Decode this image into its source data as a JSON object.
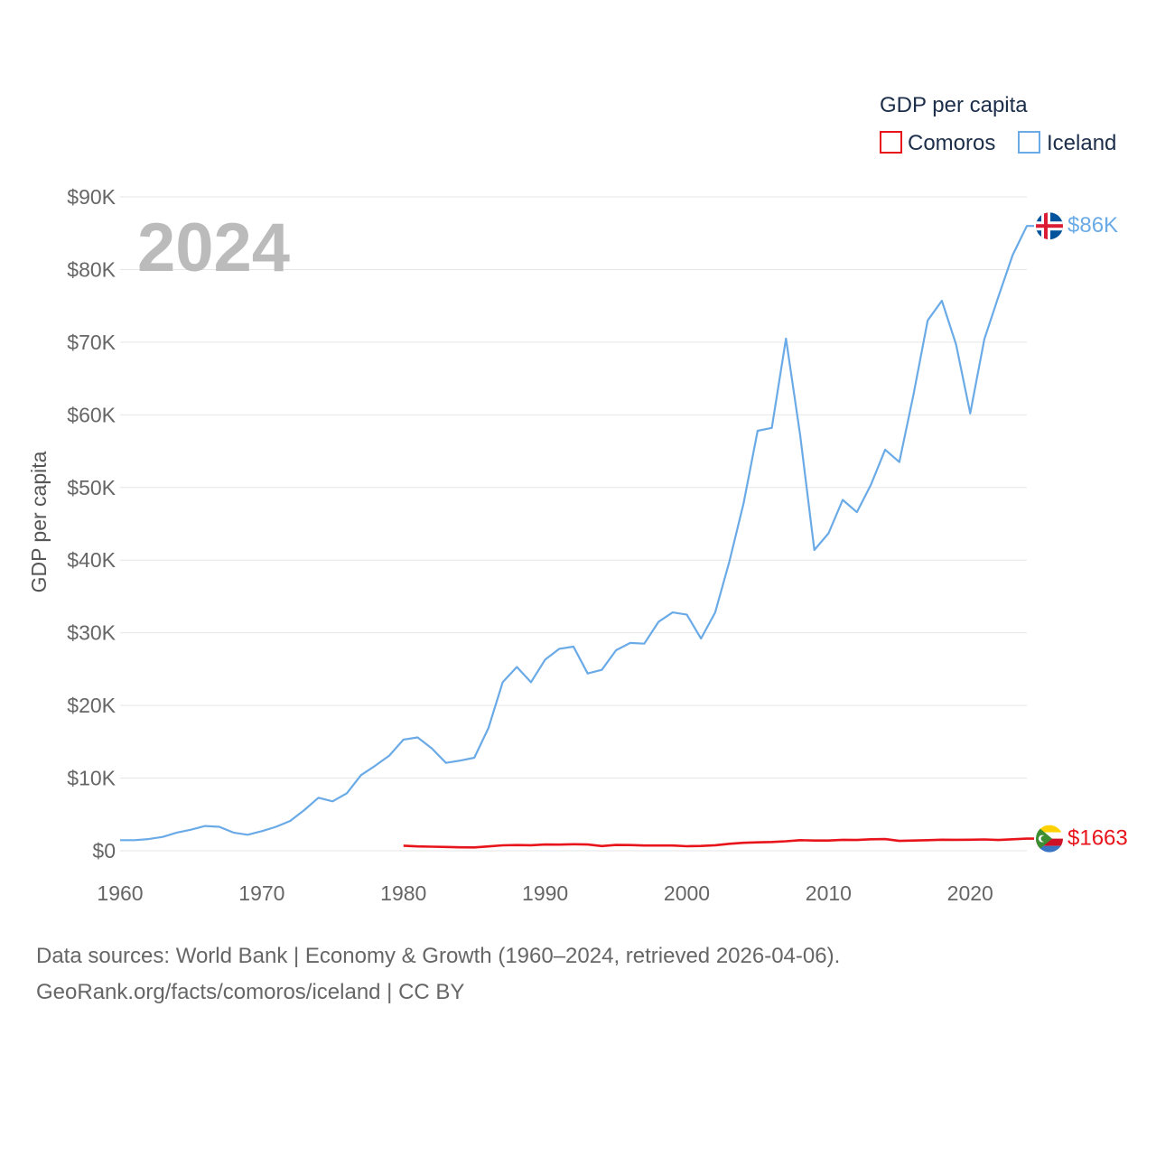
{
  "footer": {
    "line1": "Data sources: World Bank | Economy & Growth (1960–2024, retrieved 2026-04-06).",
    "line2": "GeoRank.org/facts/comoros/iceland | CC BY"
  },
  "colors": {
    "comoros": "#e8141b",
    "iceland": "#6aaae6",
    "grid": "#e6e6e6",
    "tick": "#666666"
  },
  "chart_data": {
    "type": "line",
    "title": "",
    "year_label": "2024",
    "xlabel": "",
    "ylabel": "GDP per capita",
    "xlim": [
      1960,
      2024
    ],
    "ylim": [
      0,
      90000
    ],
    "x_ticks": [
      1960,
      1970,
      1980,
      1990,
      2000,
      2010,
      2020
    ],
    "x_tick_labels": [
      "1960",
      "1970",
      "1980",
      "1990",
      "2000",
      "2010",
      "2020"
    ],
    "y_ticks": [
      0,
      10000,
      20000,
      30000,
      40000,
      50000,
      60000,
      70000,
      80000,
      90000
    ],
    "y_tick_labels": [
      "$0",
      "$10K",
      "$20K",
      "$30K",
      "$40K",
      "$50K",
      "$60K",
      "$70K",
      "$80K",
      "$90K"
    ],
    "legend_title": "GDP per capita",
    "legend_position": "top-right",
    "grid": true,
    "series": [
      {
        "name": "Comoros",
        "color": "#e8141b",
        "end_label": "$1663",
        "x": [
          1980,
          1981,
          1982,
          1983,
          1984,
          1985,
          1986,
          1987,
          1988,
          1989,
          1990,
          1991,
          1992,
          1993,
          1994,
          1995,
          1996,
          1997,
          1998,
          1999,
          2000,
          2001,
          2002,
          2003,
          2004,
          2005,
          2006,
          2007,
          2008,
          2009,
          2010,
          2011,
          2012,
          2013,
          2014,
          2015,
          2016,
          2017,
          2018,
          2019,
          2020,
          2021,
          2022,
          2023,
          2024
        ],
        "values": [
          700,
          600,
          560,
          520,
          470,
          460,
          600,
          750,
          780,
          760,
          860,
          840,
          900,
          860,
          650,
          800,
          780,
          720,
          720,
          720,
          620,
          660,
          760,
          960,
          1100,
          1150,
          1200,
          1300,
          1450,
          1400,
          1400,
          1500,
          1480,
          1580,
          1600,
          1350,
          1400,
          1450,
          1520,
          1500,
          1520,
          1550,
          1480,
          1580,
          1663
        ]
      },
      {
        "name": "Iceland",
        "color": "#6aaae6",
        "end_label": "$86K",
        "x": [
          1960,
          1961,
          1962,
          1963,
          1964,
          1965,
          1966,
          1967,
          1968,
          1969,
          1970,
          1971,
          1972,
          1973,
          1974,
          1975,
          1976,
          1977,
          1978,
          1979,
          1980,
          1981,
          1982,
          1983,
          1984,
          1985,
          1986,
          1987,
          1988,
          1989,
          1990,
          1991,
          1992,
          1993,
          1994,
          1995,
          1996,
          1997,
          1998,
          1999,
          2000,
          2001,
          2002,
          2003,
          2004,
          2005,
          2006,
          2007,
          2008,
          2009,
          2010,
          2011,
          2012,
          2013,
          2014,
          2015,
          2016,
          2017,
          2018,
          2019,
          2020,
          2021,
          2022,
          2023,
          2024
        ],
        "values": [
          1450,
          1450,
          1600,
          1900,
          2500,
          2900,
          3400,
          3300,
          2500,
          2200,
          2700,
          3300,
          4100,
          5600,
          7300,
          6800,
          7900,
          10400,
          11700,
          13100,
          15300,
          15600,
          14100,
          12100,
          12400,
          12800,
          16900,
          23200,
          25300,
          23200,
          26300,
          27800,
          28100,
          24400,
          24900,
          27600,
          28600,
          28500,
          31500,
          32800,
          32500,
          29200,
          32800,
          39800,
          47800,
          57800,
          58200,
          70500,
          57200,
          41400,
          43700,
          48300,
          46600,
          50400,
          55200,
          53500,
          62800,
          73000,
          75700,
          69700,
          60200,
          70400,
          76300,
          82000,
          86000
        ]
      }
    ]
  }
}
